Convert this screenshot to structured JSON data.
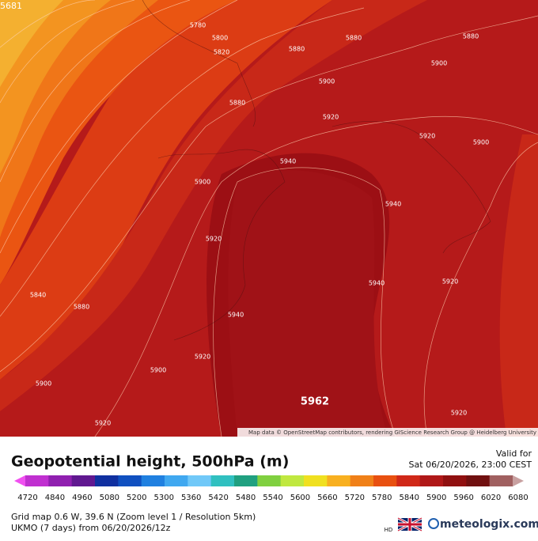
{
  "map": {
    "corner_value": "5681",
    "max_label": "5962",
    "contour_labels": [
      "5780",
      "5800",
      "5820",
      "5880",
      "5880",
      "5880",
      "5900",
      "5900",
      "5880",
      "5920",
      "5920",
      "5900",
      "5940",
      "5900",
      "5940",
      "5920",
      "5940",
      "5920",
      "5840",
      "5880",
      "5940",
      "5920",
      "5900",
      "5900",
      "5920",
      "5920"
    ],
    "attribution": "Map data © OpenStreetMap contributors, rendering GIScience Research Group @ Heidelberg University"
  },
  "legend": {
    "title": "Geopotential height, 500hPa (m)",
    "valid_label": "Valid for",
    "valid_time": "Sat 06/20/2026, 23:00 CEST",
    "ticks": [
      "4720",
      "4840",
      "4960",
      "5080",
      "5200",
      "5300",
      "5360",
      "5420",
      "5480",
      "5540",
      "5600",
      "5660",
      "5720",
      "5780",
      "5840",
      "5900",
      "5960",
      "6020",
      "6080"
    ],
    "colors": [
      "#f050f0",
      "#c030d0",
      "#9020b0",
      "#601890",
      "#1030a0",
      "#1050c0",
      "#2080e0",
      "#40a8f0",
      "#70c8f8",
      "#30c0c0",
      "#20a080",
      "#80d040",
      "#c0e840",
      "#f0e020",
      "#f8b020",
      "#f08018",
      "#e85010",
      "#d02818",
      "#b01818",
      "#901010",
      "#701010",
      "#a06060",
      "#c8a0a0"
    ]
  },
  "footer": {
    "grid": "Grid map 0.6 W, 39.6 N (Zoom level 1 / Resolution 5km)",
    "model": "UKMO (7 days) from 06/20/2026/12z",
    "hd": "HD",
    "brand": "meteologix.com"
  }
}
